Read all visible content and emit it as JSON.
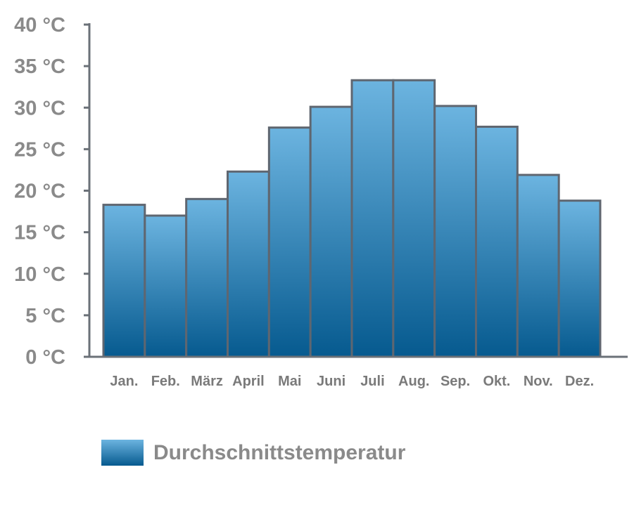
{
  "chart_data": {
    "type": "bar",
    "categories": [
      "Jan.",
      "Feb.",
      "März",
      "April",
      "Mai",
      "Juni",
      "Juli",
      "Aug.",
      "Sep.",
      "Okt.",
      "Nov.",
      "Dez."
    ],
    "series": [
      {
        "name": "Durchschnittstemperatur",
        "values": [
          18.3,
          17.0,
          19.0,
          22.3,
          27.6,
          30.1,
          33.3,
          33.3,
          30.2,
          27.7,
          21.9,
          18.8
        ]
      }
    ],
    "yticks": [
      0,
      5,
      10,
      15,
      20,
      25,
      30,
      35,
      40
    ],
    "ytick_labels": [
      "0 °C",
      "5 °C",
      "10 °C",
      "15 °C",
      "20 °C",
      "25 °C",
      "30 °C",
      "35 °C",
      "40 °C"
    ],
    "ylim": [
      0,
      40
    ],
    "grid": false,
    "legend_placement": "bottom-left",
    "colors": {
      "bar_top": "#6cb4e0",
      "bar_bottom": "#065a8f",
      "bar_edge": "#5f6670",
      "axis": "#6b7178",
      "text": "#8a8a8a"
    }
  }
}
